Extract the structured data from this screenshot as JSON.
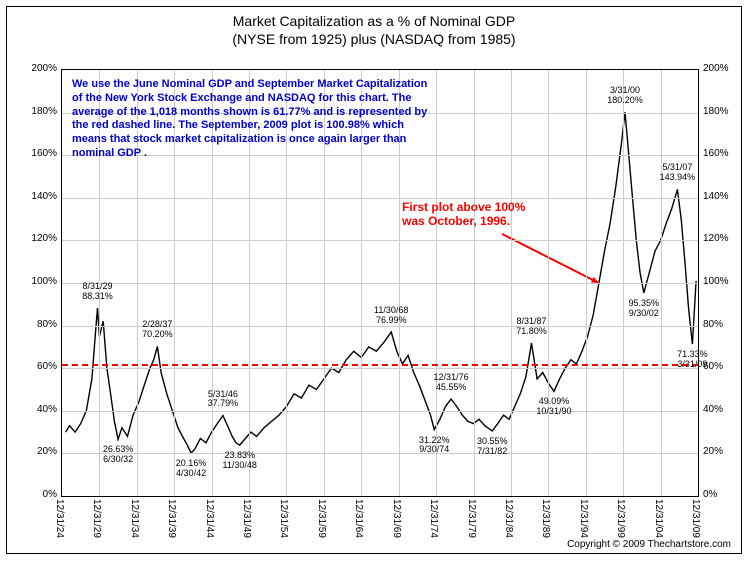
{
  "title_line1": "Market Capitalization as a % of Nominal GDP",
  "title_line2": "(NYSE from 1925) plus (NASDAQ from 1985)",
  "copyright": "Copyright © 2009 Thechartstore.com",
  "chart": {
    "type": "line",
    "background_color": "#ffffff",
    "grid_color": "#cccccc",
    "series_color": "#000000",
    "series_width": 1.4,
    "ylim": [
      0,
      200
    ],
    "ytick_step": 20,
    "y_suffix": "%",
    "x_labels": [
      "12/31/24",
      "12/31/29",
      "12/31/34",
      "12/31/39",
      "12/31/44",
      "12/31/49",
      "12/31/54",
      "12/31/59",
      "12/31/64",
      "12/31/69",
      "12/31/74",
      "12/31/79",
      "12/31/84",
      "12/31/89",
      "12/31/94",
      "12/31/99",
      "12/31/04",
      "12/31/09"
    ],
    "average_line": {
      "value": 61.77,
      "color": "#ff0000",
      "dash": true,
      "width": 2
    },
    "description": {
      "color": "#0000d0",
      "fontsize": 11,
      "fontweight": "bold",
      "text": "We use the June Nominal GDP and September Market Capitalization of the New York Stock Exchange and NASDAQ for this chart.  The average of the 1,018 months shown is 61.77% and is represented by the red dashed line.  The September, 2009 plot is 100.98% which means that stock market capitalization is once again larger than nominal GDP ."
    },
    "callout": {
      "color": "#ff0000",
      "fontsize": 12,
      "fontweight": "bold",
      "text_l1": "First plot above 100%",
      "text_l2": "was October, 1996.",
      "arrow_to_xi": 14.35,
      "arrow_to_y": 100
    },
    "point_labels": [
      {
        "xi": 0.95,
        "above": true,
        "date": "8/31/29",
        "value": "88.31%"
      },
      {
        "xi": 1.5,
        "above": false,
        "date": "26.63%",
        "value": "6/30/32"
      },
      {
        "xi": 2.55,
        "above": true,
        "date": "2/28/37",
        "value": "70.20%"
      },
      {
        "xi": 3.45,
        "above": false,
        "date": "20.16%",
        "value": "4/30/42"
      },
      {
        "xi": 4.3,
        "above": true,
        "date": "5/31/46",
        "value": "37.79%"
      },
      {
        "xi": 4.75,
        "above": false,
        "date": "23.83%",
        "value": "11/30/48"
      },
      {
        "xi": 8.8,
        "above": true,
        "date": "11/30/68",
        "value": "76.99%"
      },
      {
        "xi": 9.95,
        "above": false,
        "date": "31.22%",
        "value": "9/30/74"
      },
      {
        "xi": 10.4,
        "above": true,
        "date": "12/31/76",
        "value": "45.55%"
      },
      {
        "xi": 11.5,
        "above": false,
        "date": "30.55%",
        "value": "7/31/82"
      },
      {
        "xi": 12.55,
        "above": true,
        "date": "8/31/87",
        "value": "71.80%"
      },
      {
        "xi": 13.15,
        "above": false,
        "date": "49.09%",
        "value": "10/31/90"
      },
      {
        "xi": 15.05,
        "above": true,
        "date": "3/31/00",
        "value": "180.20%"
      },
      {
        "xi": 15.55,
        "above": false,
        "date": "95.35%",
        "value": "9/30/02"
      },
      {
        "xi": 16.45,
        "above": true,
        "date": "5/31/07",
        "value": "143.94%"
      },
      {
        "xi": 16.85,
        "above": false,
        "date": "71.33%",
        "value": "3/31/09"
      }
    ],
    "point_label_fontsize": 9,
    "series": [
      {
        "xi": 0.1,
        "y": 30
      },
      {
        "xi": 0.2,
        "y": 33
      },
      {
        "xi": 0.35,
        "y": 30
      },
      {
        "xi": 0.5,
        "y": 34
      },
      {
        "xi": 0.65,
        "y": 40
      },
      {
        "xi": 0.8,
        "y": 55
      },
      {
        "xi": 0.9,
        "y": 78
      },
      {
        "xi": 0.95,
        "y": 88.31
      },
      {
        "xi": 1.0,
        "y": 75
      },
      {
        "xi": 1.1,
        "y": 82
      },
      {
        "xi": 1.2,
        "y": 60
      },
      {
        "xi": 1.3,
        "y": 48
      },
      {
        "xi": 1.4,
        "y": 35
      },
      {
        "xi": 1.5,
        "y": 26.63
      },
      {
        "xi": 1.6,
        "y": 32
      },
      {
        "xi": 1.75,
        "y": 28
      },
      {
        "xi": 1.9,
        "y": 38
      },
      {
        "xi": 2.05,
        "y": 44
      },
      {
        "xi": 2.2,
        "y": 52
      },
      {
        "xi": 2.35,
        "y": 60
      },
      {
        "xi": 2.45,
        "y": 64
      },
      {
        "xi": 2.55,
        "y": 70.2
      },
      {
        "xi": 2.65,
        "y": 58
      },
      {
        "xi": 2.8,
        "y": 48
      },
      {
        "xi": 2.95,
        "y": 40
      },
      {
        "xi": 3.1,
        "y": 32
      },
      {
        "xi": 3.25,
        "y": 27
      },
      {
        "xi": 3.35,
        "y": 24
      },
      {
        "xi": 3.45,
        "y": 20.16
      },
      {
        "xi": 3.55,
        "y": 22
      },
      {
        "xi": 3.7,
        "y": 27
      },
      {
        "xi": 3.85,
        "y": 25
      },
      {
        "xi": 4.0,
        "y": 30
      },
      {
        "xi": 4.15,
        "y": 34
      },
      {
        "xi": 4.3,
        "y": 37.79
      },
      {
        "xi": 4.4,
        "y": 34
      },
      {
        "xi": 4.55,
        "y": 28
      },
      {
        "xi": 4.65,
        "y": 25
      },
      {
        "xi": 4.75,
        "y": 23.83
      },
      {
        "xi": 4.9,
        "y": 27
      },
      {
        "xi": 5.05,
        "y": 30
      },
      {
        "xi": 5.2,
        "y": 28
      },
      {
        "xi": 5.4,
        "y": 32
      },
      {
        "xi": 5.6,
        "y": 35
      },
      {
        "xi": 5.8,
        "y": 38
      },
      {
        "xi": 6.0,
        "y": 42
      },
      {
        "xi": 6.2,
        "y": 48
      },
      {
        "xi": 6.4,
        "y": 46
      },
      {
        "xi": 6.6,
        "y": 52
      },
      {
        "xi": 6.8,
        "y": 50
      },
      {
        "xi": 7.0,
        "y": 55
      },
      {
        "xi": 7.2,
        "y": 60
      },
      {
        "xi": 7.4,
        "y": 58
      },
      {
        "xi": 7.6,
        "y": 64
      },
      {
        "xi": 7.8,
        "y": 68
      },
      {
        "xi": 8.0,
        "y": 65
      },
      {
        "xi": 8.2,
        "y": 70
      },
      {
        "xi": 8.4,
        "y": 68
      },
      {
        "xi": 8.6,
        "y": 72
      },
      {
        "xi": 8.8,
        "y": 76.99
      },
      {
        "xi": 8.95,
        "y": 68
      },
      {
        "xi": 9.1,
        "y": 62
      },
      {
        "xi": 9.25,
        "y": 66
      },
      {
        "xi": 9.4,
        "y": 58
      },
      {
        "xi": 9.55,
        "y": 52
      },
      {
        "xi": 9.7,
        "y": 45
      },
      {
        "xi": 9.85,
        "y": 38
      },
      {
        "xi": 9.95,
        "y": 31.22
      },
      {
        "xi": 10.1,
        "y": 36
      },
      {
        "xi": 10.25,
        "y": 42
      },
      {
        "xi": 10.4,
        "y": 45.55
      },
      {
        "xi": 10.55,
        "y": 42
      },
      {
        "xi": 10.7,
        "y": 38
      },
      {
        "xi": 10.85,
        "y": 35
      },
      {
        "xi": 11.0,
        "y": 34
      },
      {
        "xi": 11.15,
        "y": 36
      },
      {
        "xi": 11.3,
        "y": 33
      },
      {
        "xi": 11.5,
        "y": 30.55
      },
      {
        "xi": 11.65,
        "y": 34
      },
      {
        "xi": 11.8,
        "y": 38
      },
      {
        "xi": 11.95,
        "y": 36
      },
      {
        "xi": 12.1,
        "y": 42
      },
      {
        "xi": 12.25,
        "y": 48
      },
      {
        "xi": 12.4,
        "y": 56
      },
      {
        "xi": 12.55,
        "y": 71.8
      },
      {
        "xi": 12.7,
        "y": 55
      },
      {
        "xi": 12.85,
        "y": 58
      },
      {
        "xi": 13.0,
        "y": 53
      },
      {
        "xi": 13.15,
        "y": 49.09
      },
      {
        "xi": 13.3,
        "y": 55
      },
      {
        "xi": 13.45,
        "y": 60
      },
      {
        "xi": 13.6,
        "y": 64
      },
      {
        "xi": 13.75,
        "y": 62
      },
      {
        "xi": 13.9,
        "y": 68
      },
      {
        "xi": 14.05,
        "y": 75
      },
      {
        "xi": 14.2,
        "y": 85
      },
      {
        "xi": 14.35,
        "y": 100
      },
      {
        "xi": 14.5,
        "y": 115
      },
      {
        "xi": 14.65,
        "y": 128
      },
      {
        "xi": 14.8,
        "y": 145
      },
      {
        "xi": 14.95,
        "y": 165
      },
      {
        "xi": 15.05,
        "y": 180.2
      },
      {
        "xi": 15.15,
        "y": 160
      },
      {
        "xi": 15.25,
        "y": 140
      },
      {
        "xi": 15.35,
        "y": 120
      },
      {
        "xi": 15.45,
        "y": 105
      },
      {
        "xi": 15.55,
        "y": 95.35
      },
      {
        "xi": 15.7,
        "y": 105
      },
      {
        "xi": 15.85,
        "y": 115
      },
      {
        "xi": 16.0,
        "y": 120
      },
      {
        "xi": 16.15,
        "y": 128
      },
      {
        "xi": 16.3,
        "y": 135
      },
      {
        "xi": 16.45,
        "y": 143.94
      },
      {
        "xi": 16.55,
        "y": 130
      },
      {
        "xi": 16.65,
        "y": 110
      },
      {
        "xi": 16.75,
        "y": 88
      },
      {
        "xi": 16.85,
        "y": 71.33
      },
      {
        "xi": 16.95,
        "y": 100.98
      }
    ]
  }
}
